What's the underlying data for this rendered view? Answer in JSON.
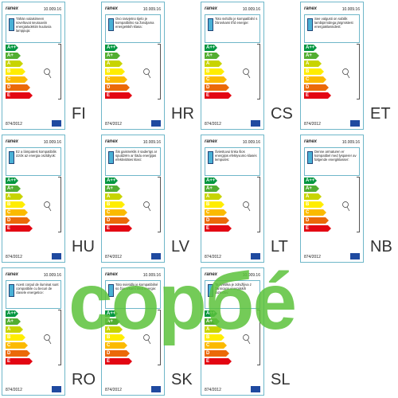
{
  "brand": "ranex",
  "date": "10.009.16",
  "regulation": "874/2012",
  "energy_classes": [
    "A++",
    "A+",
    "A",
    "B",
    "C",
    "D",
    "E"
  ],
  "labels": [
    {
      "code": "FI",
      "text": "Tähän valaisimeen soveltuvat seuraaviin energialuokkiin kuuluvia lamppuja:"
    },
    {
      "code": "HR",
      "text": "Ovo rasvjetno tijelo je kompatibilno sa žaruljama energetskih klasa:"
    },
    {
      "code": "CS",
      "text": "Toto svítidlo je kompatibilní s žárovkami tříd energie:"
    },
    {
      "code": "ET",
      "text": "See valgusti on sobilik lambipirnidega järgmistest energiaklassidest:"
    },
    {
      "code": "HU",
      "text": "Ez a lámpatest kompatibilis izzók az energia osztályok:"
    },
    {
      "code": "LV",
      "text": "Šis gaismeklis ir saderīgs ar spuldzēm ar šādu enerģijas efektivitātes klasi:"
    },
    {
      "code": "LT",
      "text": "Šviestuvui tinka šios energijos efektyvumo klasės lemputės:"
    },
    {
      "code": "NB",
      "text": "Denne armaturen er kompatibel med lyspærer av følgende energiklasser:"
    },
    {
      "code": "RO",
      "text": "Acest corpul de iluminat sunt compatibile cu becuri de clasele energetice:"
    },
    {
      "code": "SK",
      "text": "Toto svietidlo je kompatibilné so žiarovkami tried energie:"
    },
    {
      "code": "SL",
      "text": "Ta svetilka je združljiva z žarnicami energijskih razredov:"
    }
  ],
  "watermark": "copбé"
}
